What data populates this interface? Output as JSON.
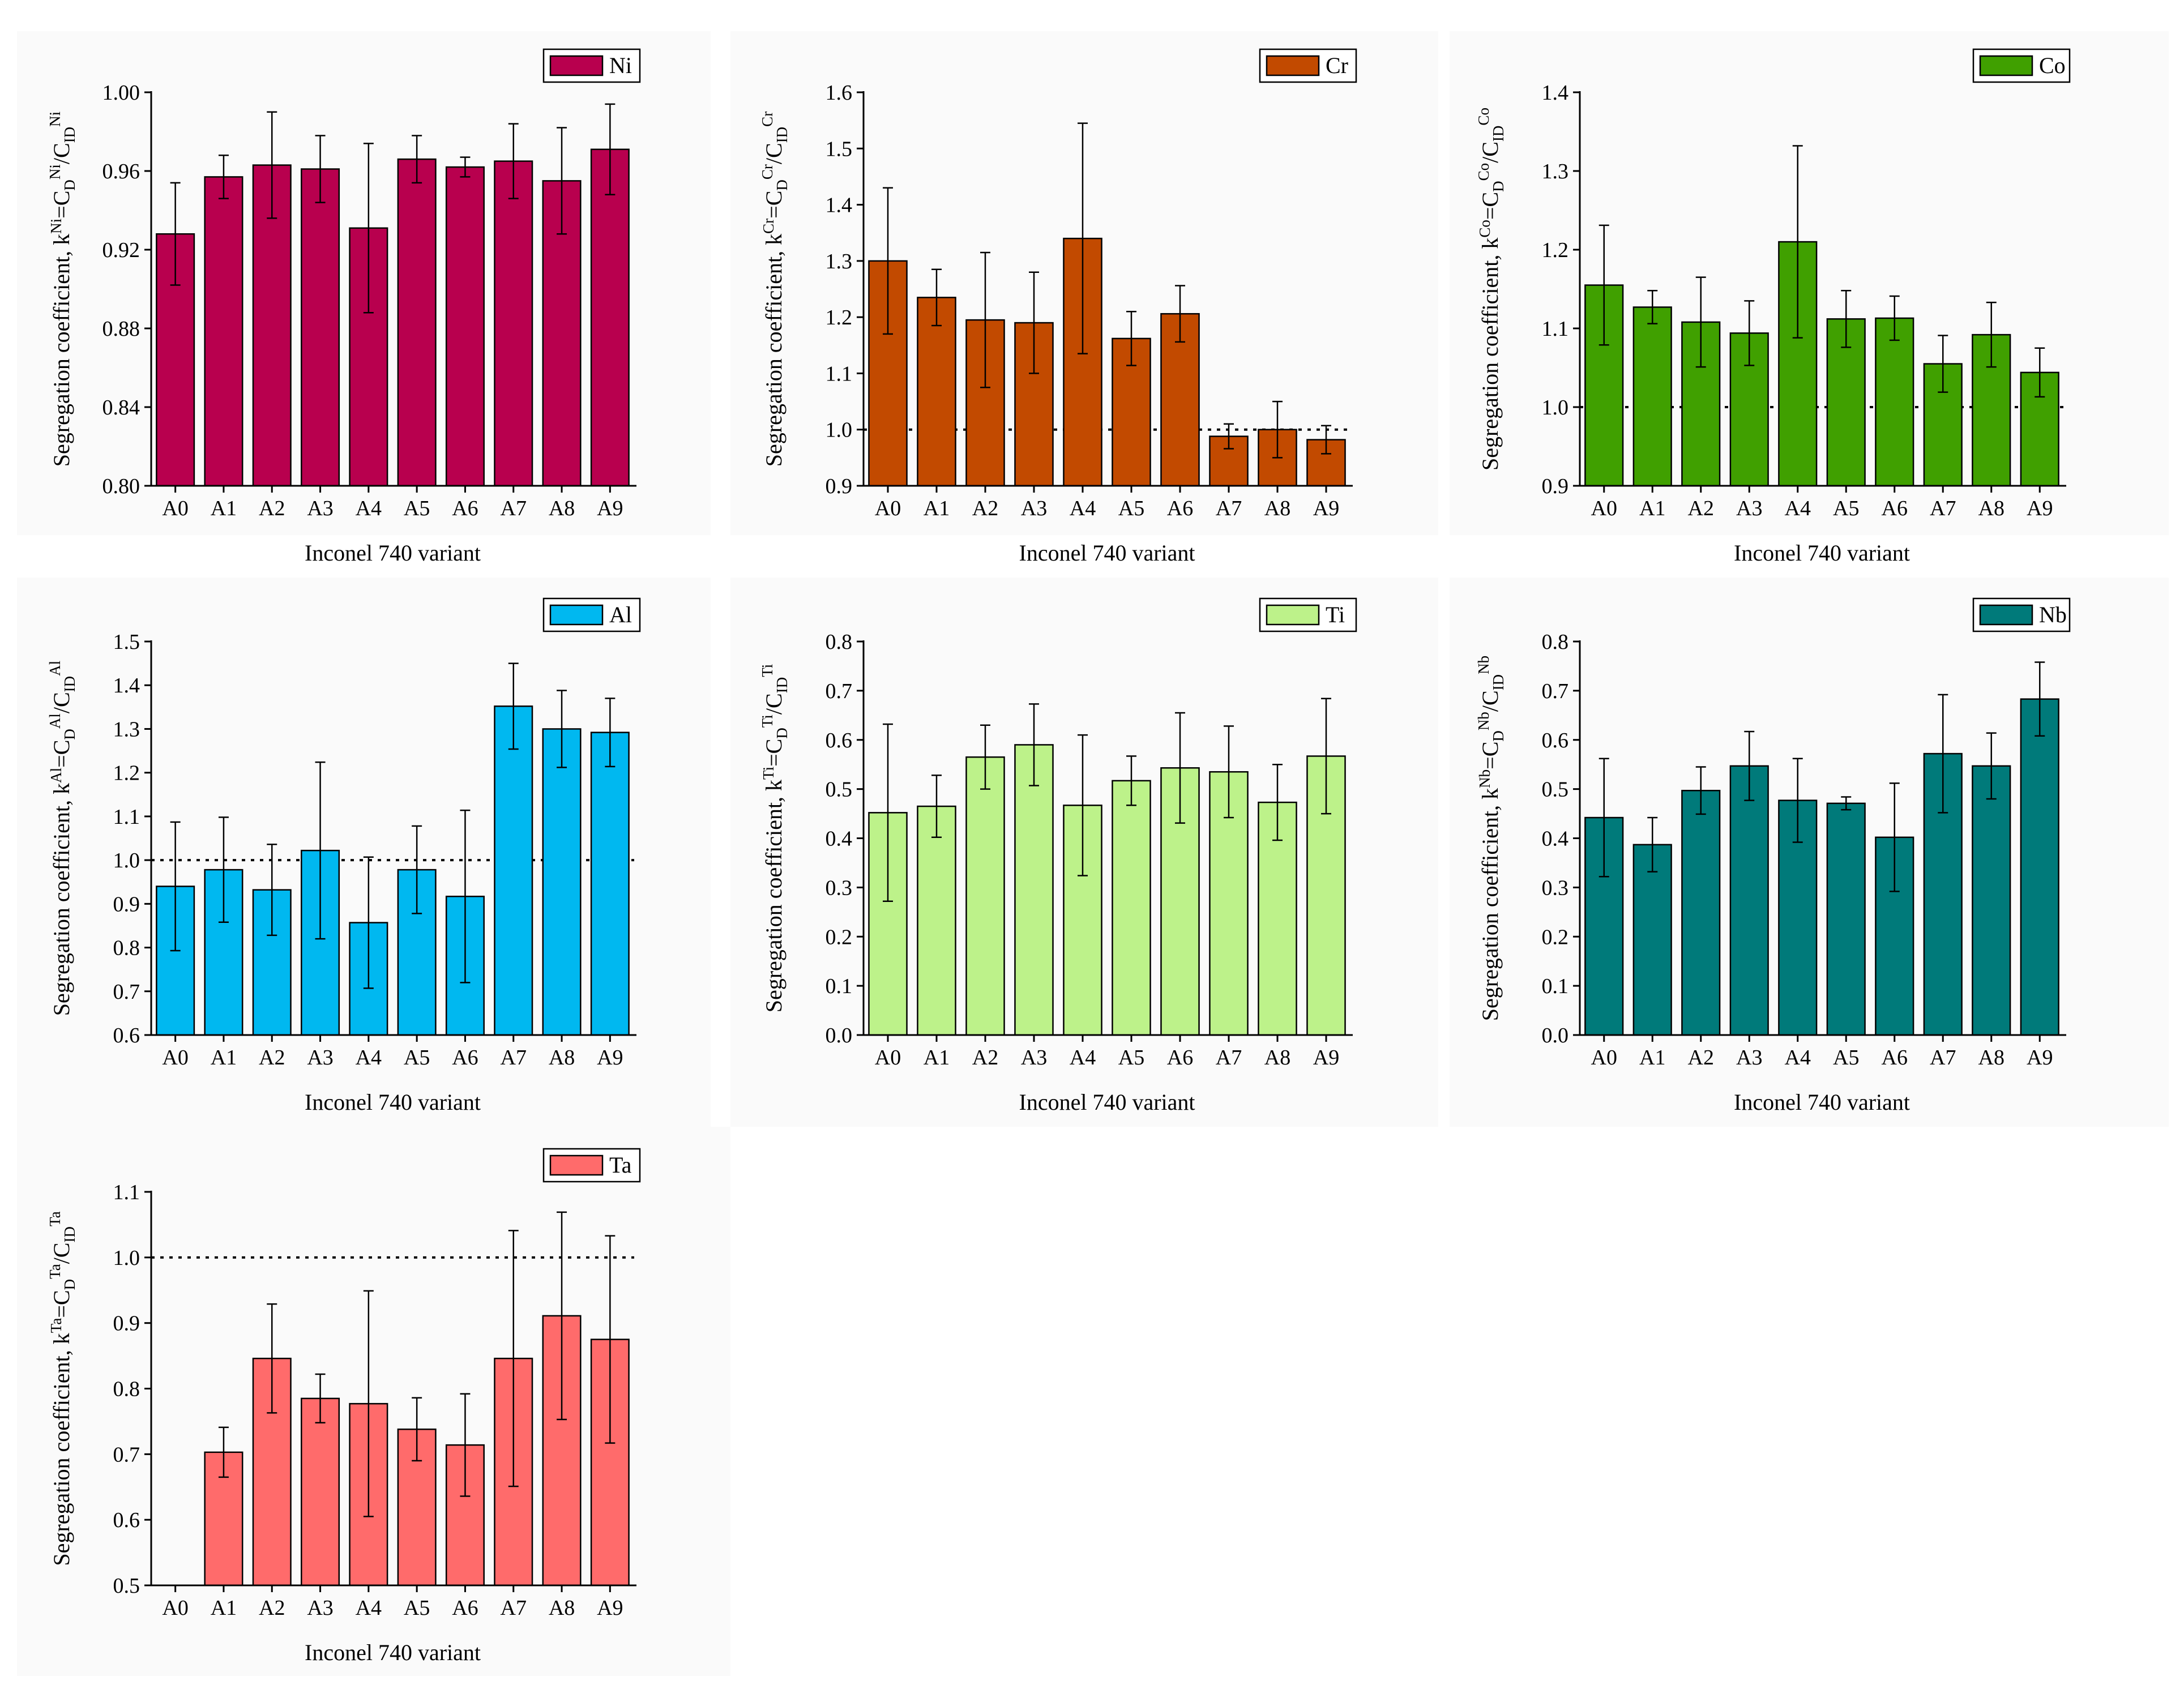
{
  "chart_data": [
    {
      "type": "bar",
      "element": "Ni",
      "color": "#B8004E",
      "title": "",
      "xlabel": "Inconel 740 variant",
      "ylabel": "Segregation coefficient, k^Ni=C_D^Ni/C_ID^Ni",
      "ylabel_parts": {
        "prefix": "Segregation coefficient, k",
        "k_sup": "Ni",
        "c1_sub": "D",
        "c1_sup": "Ni",
        "c2_sub": "ID",
        "c2_sup": "Ni"
      },
      "categories": [
        "A0",
        "A1",
        "A2",
        "A3",
        "A4",
        "A5",
        "A6",
        "A7",
        "A8",
        "A9"
      ],
      "values": [
        0.928,
        0.957,
        0.963,
        0.961,
        0.931,
        0.966,
        0.962,
        0.965,
        0.955,
        0.971
      ],
      "errors": [
        0.026,
        0.011,
        0.027,
        0.017,
        0.043,
        0.012,
        0.005,
        0.019,
        0.027,
        0.023
      ],
      "ylim": [
        0.8,
        1.0
      ],
      "yticks": [
        0.8,
        0.84,
        0.88,
        0.92,
        0.96,
        1.0
      ],
      "ytick_labels": [
        "0.80",
        "0.84",
        "0.88",
        "0.92",
        "0.96",
        "1.00"
      ],
      "reference_line": null,
      "legend": "Ni"
    },
    {
      "type": "bar",
      "element": "Cr",
      "color": "#C24A00",
      "title": "",
      "xlabel": "Inconel 740 variant",
      "ylabel": "Segregation coefficient, k^Cr=C_D^Cr/C_ID^Cr",
      "ylabel_parts": {
        "prefix": "Segregation coefficient, k",
        "k_sup": "Cr",
        "c1_sub": "D",
        "c1_sup": "Cr",
        "c2_sub": "ID",
        "c2_sup": "Cr"
      },
      "categories": [
        "A0",
        "A1",
        "A2",
        "A3",
        "A4",
        "A5",
        "A6",
        "A7",
        "A8",
        "A9"
      ],
      "values": [
        1.3,
        1.235,
        1.195,
        1.19,
        1.34,
        1.162,
        1.206,
        0.988,
        1.0,
        0.982
      ],
      "errors": [
        0.13,
        0.05,
        0.12,
        0.09,
        0.205,
        0.048,
        0.05,
        0.022,
        0.05,
        0.025
      ],
      "ylim": [
        0.9,
        1.6
      ],
      "yticks": [
        0.9,
        1.0,
        1.1,
        1.2,
        1.3,
        1.4,
        1.5,
        1.6
      ],
      "ytick_labels": [
        "0.9",
        "1.0",
        "1.1",
        "1.2",
        "1.3",
        "1.4",
        "1.5",
        "1.6"
      ],
      "reference_line": 1.0,
      "legend": "Cr"
    },
    {
      "type": "bar",
      "element": "Co",
      "color": "#40A000",
      "title": "",
      "xlabel": "Inconel 740 variant",
      "ylabel": "Segregation coefficient, k^Co=C_D^Co/C_ID^Co",
      "ylabel_parts": {
        "prefix": "Segregation coefficient, k",
        "k_sup": "Co",
        "c1_sub": "D",
        "c1_sup": "Co",
        "c2_sub": "ID",
        "c2_sup": "Co"
      },
      "categories": [
        "A0",
        "A1",
        "A2",
        "A3",
        "A4",
        "A5",
        "A6",
        "A7",
        "A8",
        "A9"
      ],
      "values": [
        1.155,
        1.127,
        1.108,
        1.094,
        1.21,
        1.112,
        1.113,
        1.055,
        1.092,
        1.044
      ],
      "errors": [
        0.076,
        0.021,
        0.057,
        0.041,
        0.122,
        0.036,
        0.028,
        0.036,
        0.041,
        0.031
      ],
      "ylim": [
        0.9,
        1.4
      ],
      "yticks": [
        0.9,
        1.0,
        1.1,
        1.2,
        1.3,
        1.4
      ],
      "ytick_labels": [
        "0.9",
        "1.0",
        "1.1",
        "1.2",
        "1.3",
        "1.4"
      ],
      "reference_line": 1.0,
      "legend": "Co"
    },
    {
      "type": "bar",
      "element": "Al",
      "color": "#00B8F0",
      "title": "",
      "xlabel": "Inconel 740 variant",
      "ylabel": "Segregation coefficient, k^Al=C_D^Al/C_ID^Al",
      "ylabel_parts": {
        "prefix": "Segregation coefficient, k",
        "k_sup": "Al",
        "c1_sub": "D",
        "c1_sup": "Al",
        "c2_sub": "ID",
        "c2_sup": "Al"
      },
      "categories": [
        "A0",
        "A1",
        "A2",
        "A3",
        "A4",
        "A5",
        "A6",
        "A7",
        "A8",
        "A9"
      ],
      "values": [
        0.94,
        0.978,
        0.932,
        1.022,
        0.857,
        0.978,
        0.917,
        1.352,
        1.3,
        1.292
      ],
      "errors": [
        0.147,
        0.12,
        0.104,
        0.202,
        0.15,
        0.1,
        0.197,
        0.098,
        0.088,
        0.078
      ],
      "ylim": [
        0.6,
        1.5
      ],
      "yticks": [
        0.6,
        0.7,
        0.8,
        0.9,
        1.0,
        1.1,
        1.2,
        1.3,
        1.4,
        1.5
      ],
      "ytick_labels": [
        "0.6",
        "0.7",
        "0.8",
        "0.9",
        "1.0",
        "1.1",
        "1.2",
        "1.3",
        "1.4",
        "1.5"
      ],
      "reference_line": 1.0,
      "legend": "Al"
    },
    {
      "type": "bar",
      "element": "Ti",
      "color": "#BDF28A",
      "title": "",
      "xlabel": "Inconel 740 variant",
      "ylabel": "Segregation coefficient, k^Ti=C_D^Ti/C_ID^Ti",
      "ylabel_parts": {
        "prefix": "Segregation coefficient, k",
        "k_sup": "Ti",
        "c1_sub": "D",
        "c1_sup": "Ti",
        "c2_sub": "ID",
        "c2_sup": "Ti"
      },
      "categories": [
        "A0",
        "A1",
        "A2",
        "A3",
        "A4",
        "A5",
        "A6",
        "A7",
        "A8",
        "A9"
      ],
      "values": [
        0.452,
        0.465,
        0.565,
        0.59,
        0.467,
        0.517,
        0.543,
        0.535,
        0.473,
        0.567
      ],
      "errors": [
        0.18,
        0.063,
        0.065,
        0.083,
        0.143,
        0.05,
        0.112,
        0.093,
        0.077,
        0.117
      ],
      "ylim": [
        0.0,
        0.8
      ],
      "yticks": [
        0.0,
        0.1,
        0.2,
        0.3,
        0.4,
        0.5,
        0.6,
        0.7,
        0.8
      ],
      "ytick_labels": [
        "0.0",
        "0.1",
        "0.2",
        "0.3",
        "0.4",
        "0.5",
        "0.6",
        "0.7",
        "0.8"
      ],
      "reference_line": null,
      "legend": "Ti"
    },
    {
      "type": "bar",
      "element": "Nb",
      "color": "#007A7A",
      "title": "",
      "xlabel": "Inconel 740 variant",
      "ylabel": "Segregation coefficient, k^Nb=C_D^Nb/C_ID^Nb",
      "ylabel_parts": {
        "prefix": "Segregation coefficient, k",
        "k_sup": "Nb",
        "c1_sub": "D",
        "c1_sup": "Nb",
        "c2_sub": "ID",
        "c2_sup": "Nb"
      },
      "categories": [
        "A0",
        "A1",
        "A2",
        "A3",
        "A4",
        "A5",
        "A6",
        "A7",
        "A8",
        "A9"
      ],
      "values": [
        0.442,
        0.387,
        0.497,
        0.547,
        0.477,
        0.471,
        0.402,
        0.572,
        0.547,
        0.683
      ],
      "errors": [
        0.12,
        0.055,
        0.048,
        0.07,
        0.085,
        0.013,
        0.11,
        0.12,
        0.067,
        0.075
      ],
      "ylim": [
        0.0,
        0.8
      ],
      "yticks": [
        0.0,
        0.1,
        0.2,
        0.3,
        0.4,
        0.5,
        0.6,
        0.7,
        0.8
      ],
      "ytick_labels": [
        "0.0",
        "0.1",
        "0.2",
        "0.3",
        "0.4",
        "0.5",
        "0.6",
        "0.7",
        "0.8"
      ],
      "reference_line": null,
      "legend": "Nb"
    },
    {
      "type": "bar",
      "element": "Ta",
      "color": "#FF6B6B",
      "title": "",
      "xlabel": "Inconel 740 variant",
      "ylabel": "Segregation coefficient, k^Ta=C_D^Ta/C_ID^Ta",
      "ylabel_parts": {
        "prefix": "Segregation coefficient, k",
        "k_sup": "Ta",
        "c1_sub": "D",
        "c1_sup": "Ta",
        "c2_sub": "ID",
        "c2_sup": "Ta"
      },
      "categories": [
        "A0",
        "A1",
        "A2",
        "A3",
        "A4",
        "A5",
        "A6",
        "A7",
        "A8",
        "A9"
      ],
      "values": [
        null,
        0.703,
        0.846,
        0.785,
        0.777,
        0.738,
        0.714,
        0.846,
        0.911,
        0.875
      ],
      "errors": [
        null,
        0.038,
        0.083,
        0.037,
        0.172,
        0.048,
        0.078,
        0.195,
        0.158,
        0.158
      ],
      "ylim": [
        0.5,
        1.1
      ],
      "yticks": [
        0.5,
        0.6,
        0.7,
        0.8,
        0.9,
        1.0,
        1.1
      ],
      "ytick_labels": [
        "0.5",
        "0.6",
        "0.7",
        "0.8",
        "0.9",
        "1.0",
        "1.1"
      ],
      "reference_line": 1.0,
      "legend": "Ta"
    }
  ]
}
